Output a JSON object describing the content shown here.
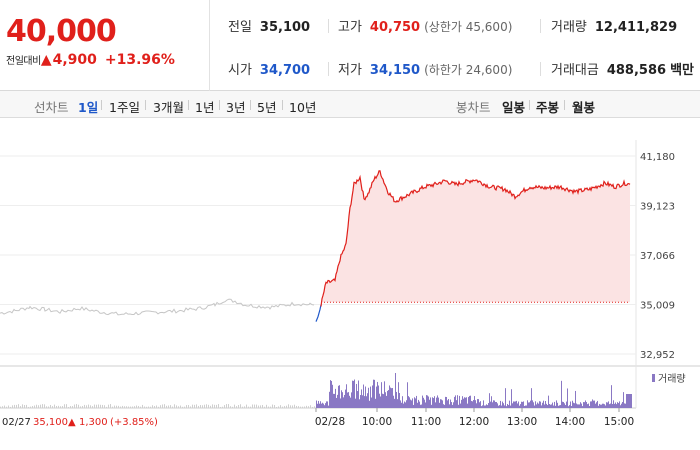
{
  "header": {
    "price": "40,000",
    "change_label": "전일대비",
    "change_arrow": "▲",
    "change_amount": "4,900",
    "change_percent": "+13.96%",
    "stats": {
      "prev_close": {
        "label": "전일",
        "value": "35,100"
      },
      "open": {
        "label": "시가",
        "value": "34,700"
      },
      "high": {
        "label": "고가",
        "value": "40,750",
        "sub": "(상한가 45,600)"
      },
      "low": {
        "label": "저가",
        "value": "34,150",
        "sub": "(하한가 24,600)"
      },
      "volume": {
        "label": "거래량",
        "value": "12,411,829"
      },
      "amount": {
        "label": "거래대금",
        "value": "488,586",
        "unit": "백만"
      }
    }
  },
  "toolbar": {
    "line_label": "선차트",
    "line_periods": [
      "1일",
      "1주일",
      "3개월",
      "1년",
      "3년",
      "5년",
      "10년"
    ],
    "selected_period": "1일",
    "candle_label": "봉차트",
    "candle_periods": [
      "일봉",
      "주봉",
      "월봉"
    ]
  },
  "chart_data": {
    "type": "line",
    "y_ticks": [
      "41,180",
      "39,123",
      "37,066",
      "35,009",
      "32,952"
    ],
    "ylim": [
      32952,
      41180
    ],
    "baseline": 35100,
    "x_ticks": [
      "02/28",
      "10:00",
      "11:00",
      "12:00",
      "13:00",
      "14:00",
      "15:00"
    ],
    "volume_legend": "거래량",
    "footer": {
      "date": "02/27",
      "price": "35,100",
      "arrow": "▲",
      "change": "1,300",
      "pct": "(+3.85%)"
    },
    "colors": {
      "up": "#e0201b",
      "down": "#1f58c9",
      "fill": "#fbe3e3",
      "prev": "#c6c6c6",
      "volume": "#8a78c4"
    }
  }
}
